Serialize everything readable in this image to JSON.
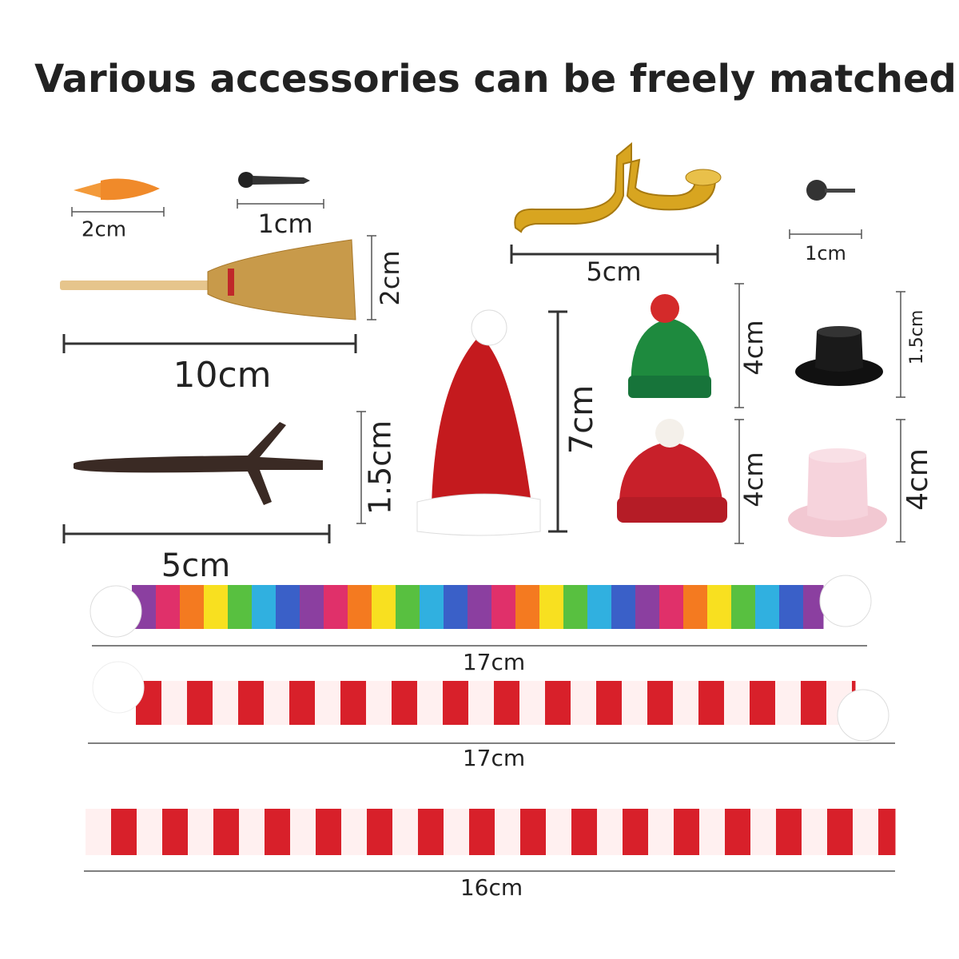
{
  "title": "Various accessories can be freely matched",
  "measurements": [
    "2cm",
    "1cm",
    "5cm",
    "1cm",
    "2cm",
    "10cm",
    "7cm",
    "4cm",
    "1.5cm",
    "1.5cm",
    "4cm",
    "4cm",
    "5cm",
    "17cm",
    "17cm",
    "16cm"
  ]
}
